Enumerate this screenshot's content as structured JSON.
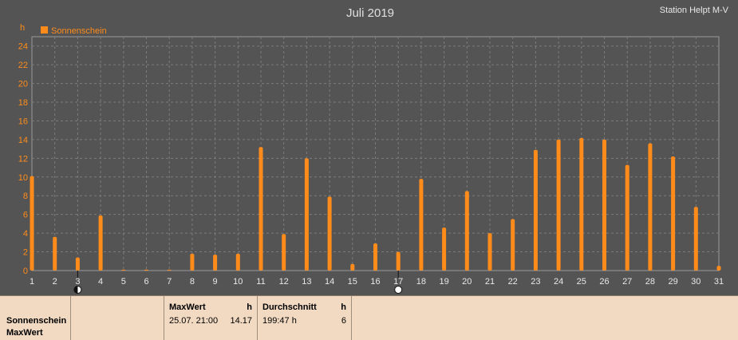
{
  "header": {
    "station": "Station Helpt M-V"
  },
  "colors": {
    "background": "#545454",
    "grid": "#7c7c7c",
    "bar": "#ff8c1a",
    "label": "#ff8c1a",
    "axis_text": "#e8e8e8"
  },
  "chart_data": {
    "type": "bar",
    "title": "Juli 2019",
    "ylabel": "h",
    "ylim": [
      0,
      25
    ],
    "yticks": [
      "0",
      "2",
      "4",
      "6",
      "8",
      "10",
      "12",
      "14",
      "16",
      "18",
      "20",
      "22",
      "24"
    ],
    "categories": [
      "1",
      "2",
      "3",
      "4",
      "5",
      "6",
      "7",
      "8",
      "9",
      "10",
      "11",
      "12",
      "13",
      "14",
      "15",
      "16",
      "17",
      "18",
      "19",
      "20",
      "21",
      "22",
      "23",
      "24",
      "25",
      "26",
      "27",
      "28",
      "29",
      "30",
      "31"
    ],
    "series": [
      {
        "name": "Sonnenschein",
        "values": [
          10.1,
          3.6,
          1.4,
          5.9,
          0.1,
          0.1,
          0.1,
          1.8,
          1.7,
          1.8,
          13.2,
          3.9,
          12.0,
          7.9,
          0.7,
          2.9,
          2.0,
          9.8,
          4.6,
          8.5,
          4.0,
          5.5,
          12.9,
          14.0,
          14.17,
          14.0,
          11.3,
          13.6,
          12.2,
          6.8,
          0.5
        ]
      }
    ],
    "grid": true,
    "legend_position": "top-left",
    "markers": [
      {
        "day": "3",
        "symbol": "half-moon"
      },
      {
        "day": "17",
        "symbol": "full-moon"
      }
    ]
  },
  "footer": {
    "row_label1": "Sonnenschein",
    "row_label2": "MaxWert",
    "max_header": "MaxWert",
    "max_unit": "h",
    "max_date": "25.07.  21:00",
    "max_value": "14.17",
    "avg_header": "Durchschnitt",
    "avg_unit": "h",
    "avg_value": "199:47 h",
    "avg_days": "6"
  }
}
